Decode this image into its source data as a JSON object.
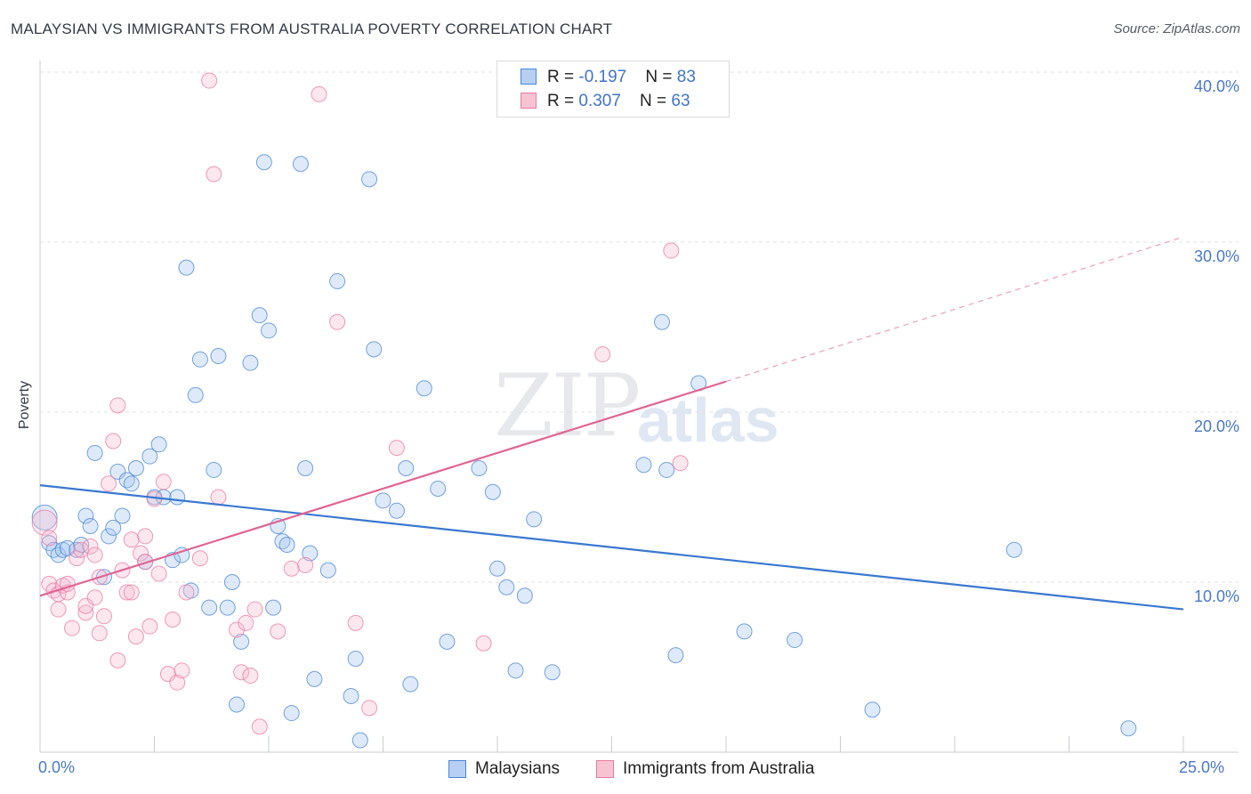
{
  "title": "MALAYSIAN VS IMMIGRANTS FROM AUSTRALIA POVERTY CORRELATION CHART",
  "source": "Source: ZipAtlas.com",
  "watermark": {
    "zip": "ZIP",
    "atlas": "atlas"
  },
  "legend": {
    "rows": [
      {
        "r_label": "R = ",
        "r_value": "-0.197",
        "n_label": "N = ",
        "n_value": "83"
      },
      {
        "r_label": "R = ",
        "r_value": " 0.307",
        "n_label": "N = ",
        "n_value": "63"
      }
    ]
  },
  "bottom_legend": {
    "series1": "Malaysians",
    "series2": "Immigrants from Australia"
  },
  "colors": {
    "blue": "#4a86d6",
    "pink": "#e87aa0",
    "blue_fill": "#b6cff2",
    "pink_fill": "#f7c3d3",
    "tick_text": "#4a78c8"
  },
  "chart_data": {
    "type": "scatter",
    "title": "MALAYSIAN VS IMMIGRANTS FROM AUSTRALIA POVERTY CORRELATION CHART",
    "ylabel": "Poverty",
    "xlabel": "",
    "xlim": [
      0,
      25
    ],
    "ylim": [
      0,
      42
    ],
    "x_tick_labels": [
      "0.0%",
      "25.0%"
    ],
    "y_ticks": [
      10,
      20,
      30,
      40
    ],
    "y_tick_labels": [
      "10.0%",
      "20.0%",
      "30.0%",
      "40.0%"
    ],
    "grid": true,
    "legend_position": "top-center",
    "series": [
      {
        "name": "Malaysians",
        "r": -0.197,
        "n": 83,
        "trend": {
          "x": [
            0,
            25
          ],
          "y": [
            15.7,
            8.4
          ]
        },
        "points": [
          [
            0.1,
            13.8
          ],
          [
            0.2,
            12.3
          ],
          [
            0.3,
            11.9
          ],
          [
            0.4,
            11.6
          ],
          [
            0.5,
            11.9
          ],
          [
            0.6,
            12.0
          ],
          [
            0.8,
            11.9
          ],
          [
            0.9,
            12.2
          ],
          [
            1.0,
            13.9
          ],
          [
            1.1,
            13.3
          ],
          [
            1.2,
            17.6
          ],
          [
            1.4,
            10.3
          ],
          [
            1.5,
            12.7
          ],
          [
            1.6,
            13.2
          ],
          [
            1.7,
            16.5
          ],
          [
            1.8,
            13.9
          ],
          [
            1.9,
            16.0
          ],
          [
            2.0,
            15.8
          ],
          [
            2.1,
            16.7
          ],
          [
            2.3,
            11.2
          ],
          [
            2.4,
            17.4
          ],
          [
            2.5,
            15.0
          ],
          [
            2.6,
            18.1
          ],
          [
            2.7,
            15.0
          ],
          [
            2.9,
            11.3
          ],
          [
            3.0,
            15.0
          ],
          [
            3.1,
            11.6
          ],
          [
            3.2,
            28.5
          ],
          [
            3.3,
            9.5
          ],
          [
            3.4,
            21.0
          ],
          [
            3.5,
            23.1
          ],
          [
            3.7,
            8.5
          ],
          [
            3.8,
            16.6
          ],
          [
            3.9,
            23.3
          ],
          [
            4.1,
            8.5
          ],
          [
            4.2,
            10.0
          ],
          [
            4.3,
            2.8
          ],
          [
            4.4,
            6.5
          ],
          [
            4.6,
            22.9
          ],
          [
            4.8,
            25.7
          ],
          [
            4.9,
            34.7
          ],
          [
            5.0,
            24.8
          ],
          [
            5.1,
            8.5
          ],
          [
            5.2,
            13.3
          ],
          [
            5.3,
            12.4
          ],
          [
            5.4,
            12.2
          ],
          [
            5.5,
            2.3
          ],
          [
            5.7,
            34.6
          ],
          [
            5.8,
            16.7
          ],
          [
            5.9,
            11.7
          ],
          [
            6.0,
            4.3
          ],
          [
            6.3,
            10.7
          ],
          [
            6.5,
            27.7
          ],
          [
            6.8,
            3.3
          ],
          [
            6.9,
            5.5
          ],
          [
            7.0,
            0.7
          ],
          [
            7.2,
            33.7
          ],
          [
            7.3,
            23.7
          ],
          [
            7.5,
            14.8
          ],
          [
            7.8,
            14.2
          ],
          [
            8.0,
            16.7
          ],
          [
            8.1,
            4.0
          ],
          [
            8.4,
            21.4
          ],
          [
            8.7,
            15.5
          ],
          [
            8.9,
            6.5
          ],
          [
            9.6,
            16.7
          ],
          [
            9.9,
            15.3
          ],
          [
            10.0,
            10.8
          ],
          [
            10.2,
            9.7
          ],
          [
            10.4,
            4.8
          ],
          [
            10.6,
            9.2
          ],
          [
            10.8,
            13.7
          ],
          [
            11.2,
            4.7
          ],
          [
            13.2,
            16.9
          ],
          [
            13.9,
            5.7
          ],
          [
            13.7,
            16.6
          ],
          [
            13.6,
            25.3
          ],
          [
            14.4,
            21.7
          ],
          [
            15.4,
            7.1
          ],
          [
            16.5,
            6.6
          ],
          [
            18.2,
            2.5
          ],
          [
            21.3,
            11.9
          ],
          [
            23.8,
            1.4
          ]
        ]
      },
      {
        "name": "Immigrants from Australia",
        "r": 0.307,
        "n": 63,
        "trend": {
          "x": [
            0,
            15
          ],
          "y": [
            9.2,
            21.8
          ]
        },
        "trend_ext": {
          "x": [
            15,
            25
          ],
          "y": [
            21.8,
            30.3
          ]
        },
        "points": [
          [
            0.1,
            13.5
          ],
          [
            0.2,
            12.6
          ],
          [
            0.2,
            9.9
          ],
          [
            0.3,
            9.5
          ],
          [
            0.4,
            9.3
          ],
          [
            0.4,
            8.4
          ],
          [
            0.5,
            9.8
          ],
          [
            0.6,
            9.4
          ],
          [
            0.6,
            9.9
          ],
          [
            0.7,
            7.3
          ],
          [
            0.8,
            11.4
          ],
          [
            0.9,
            11.9
          ],
          [
            1.0,
            8.2
          ],
          [
            1.0,
            8.6
          ],
          [
            1.1,
            12.1
          ],
          [
            1.2,
            11.6
          ],
          [
            1.2,
            9.1
          ],
          [
            1.3,
            10.3
          ],
          [
            1.3,
            7.0
          ],
          [
            1.4,
            8.0
          ],
          [
            1.5,
            15.8
          ],
          [
            1.6,
            18.3
          ],
          [
            1.7,
            20.4
          ],
          [
            1.7,
            5.4
          ],
          [
            1.8,
            10.7
          ],
          [
            1.9,
            9.4
          ],
          [
            2.0,
            9.4
          ],
          [
            2.0,
            12.5
          ],
          [
            2.1,
            6.8
          ],
          [
            2.2,
            11.7
          ],
          [
            2.3,
            12.7
          ],
          [
            2.3,
            11.2
          ],
          [
            2.4,
            7.4
          ],
          [
            2.5,
            14.9
          ],
          [
            2.6,
            10.5
          ],
          [
            2.7,
            15.9
          ],
          [
            2.8,
            4.6
          ],
          [
            2.9,
            7.8
          ],
          [
            3.0,
            4.1
          ],
          [
            3.1,
            4.8
          ],
          [
            3.2,
            9.4
          ],
          [
            3.5,
            11.4
          ],
          [
            3.7,
            39.5
          ],
          [
            3.8,
            34.0
          ],
          [
            3.9,
            15.0
          ],
          [
            4.3,
            7.2
          ],
          [
            4.4,
            4.7
          ],
          [
            4.5,
            7.6
          ],
          [
            4.6,
            4.5
          ],
          [
            4.7,
            8.4
          ],
          [
            4.8,
            1.5
          ],
          [
            5.2,
            7.1
          ],
          [
            5.5,
            10.8
          ],
          [
            5.8,
            11.0
          ],
          [
            6.1,
            38.7
          ],
          [
            6.5,
            25.3
          ],
          [
            6.9,
            7.6
          ],
          [
            7.2,
            2.6
          ],
          [
            7.8,
            17.9
          ],
          [
            9.7,
            6.4
          ],
          [
            12.3,
            23.4
          ],
          [
            13.8,
            29.5
          ],
          [
            14.0,
            17.0
          ]
        ]
      }
    ]
  }
}
